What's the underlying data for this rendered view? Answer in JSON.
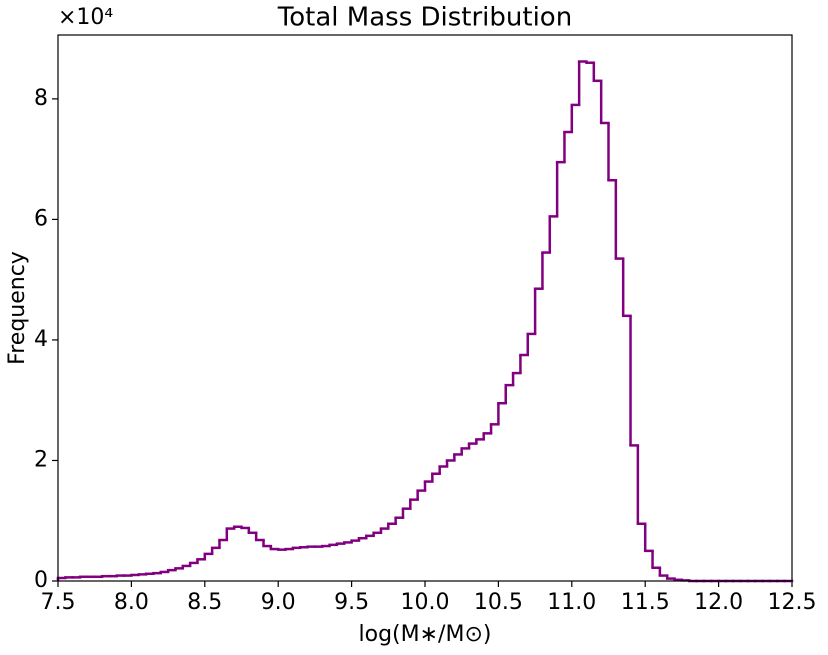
{
  "chart_data": {
    "type": "histogram",
    "style": "step",
    "title": "Total Mass Distribution",
    "x_label": "log(M∗/M⊙)",
    "y_label": "Frequency",
    "y_offset_label": "×10⁴",
    "color": "#800080",
    "bins": [
      7.5,
      7.55,
      7.6,
      7.65,
      7.7,
      7.75,
      7.8,
      7.85,
      7.9,
      7.95,
      8.0,
      8.05,
      8.1,
      8.15,
      8.2,
      8.25,
      8.3,
      8.35,
      8.4,
      8.45,
      8.5,
      8.55,
      8.6,
      8.65,
      8.7,
      8.75,
      8.8,
      8.85,
      8.9,
      8.95,
      9.0,
      9.05,
      9.1,
      9.15,
      9.2,
      9.25,
      9.3,
      9.35,
      9.4,
      9.45,
      9.5,
      9.55,
      9.6,
      9.65,
      9.7,
      9.75,
      9.8,
      9.85,
      9.9,
      9.95,
      10.0,
      10.05,
      10.1,
      10.15,
      10.2,
      10.25,
      10.3,
      10.35,
      10.4,
      10.45,
      10.5,
      10.55,
      10.6,
      10.65,
      10.7,
      10.75,
      10.8,
      10.85,
      10.9,
      10.95,
      11.0,
      11.05,
      11.1,
      11.15,
      11.2,
      11.25,
      11.3,
      11.35,
      11.4,
      11.45,
      11.5,
      11.55,
      11.6,
      11.65,
      11.7,
      11.75,
      11.8,
      11.85,
      11.9,
      11.95,
      12.0,
      12.05,
      12.1,
      12.15,
      12.2,
      12.25,
      12.3,
      12.35,
      12.4,
      12.45,
      12.5
    ],
    "values": [
      0.05,
      0.06,
      0.06,
      0.07,
      0.07,
      0.07,
      0.08,
      0.08,
      0.09,
      0.09,
      0.1,
      0.11,
      0.12,
      0.13,
      0.15,
      0.18,
      0.21,
      0.25,
      0.3,
      0.36,
      0.45,
      0.55,
      0.68,
      0.87,
      0.9,
      0.88,
      0.8,
      0.68,
      0.58,
      0.53,
      0.52,
      0.53,
      0.55,
      0.56,
      0.57,
      0.57,
      0.58,
      0.6,
      0.62,
      0.64,
      0.67,
      0.71,
      0.75,
      0.8,
      0.87,
      0.95,
      1.05,
      1.2,
      1.35,
      1.5,
      1.65,
      1.78,
      1.9,
      2.0,
      2.1,
      2.2,
      2.28,
      2.35,
      2.45,
      2.6,
      2.95,
      3.25,
      3.45,
      3.75,
      4.1,
      4.85,
      5.45,
      6.05,
      6.95,
      7.45,
      7.9,
      8.62,
      8.6,
      8.3,
      7.6,
      6.65,
      5.35,
      4.4,
      2.25,
      0.95,
      0.5,
      0.22,
      0.09,
      0.04,
      0.02,
      0.01,
      0,
      0,
      0,
      0,
      0,
      0,
      0,
      0,
      0,
      0,
      0,
      0,
      0,
      0
    ],
    "xlim": [
      7.5,
      12.5
    ],
    "ylim": [
      0,
      9.06
    ],
    "xticks": [
      7.5,
      {
        "value": 8,
        "label": "8.0"
      },
      8.5,
      {
        "value": 9,
        "label": "9.0"
      },
      9.5,
      {
        "value": 10,
        "label": "10.0"
      },
      10.5,
      {
        "value": 11,
        "label": "11.0"
      },
      11.5,
      {
        "value": 12,
        "label": "12.0"
      },
      12.5
    ],
    "yticks": [
      0,
      2,
      4,
      6,
      8
    ],
    "grid": false
  }
}
